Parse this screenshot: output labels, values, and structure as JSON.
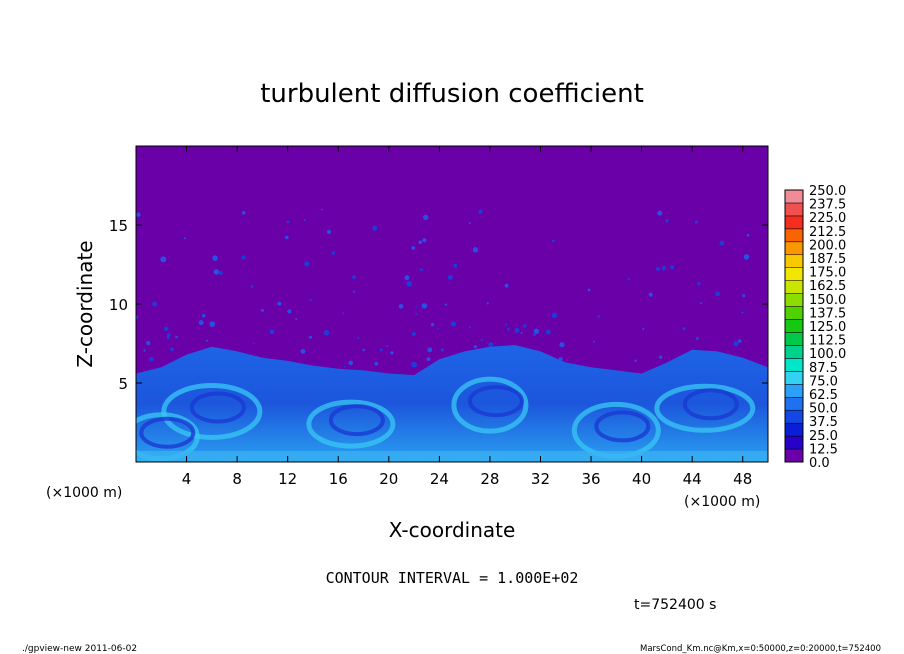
{
  "chart_data": {
    "type": "heatmap",
    "title": "turbulent diffusion coefficient",
    "xlabel": "X-coordinate",
    "ylabel": "Z-coordinate",
    "x_unit": "(×1000 m)",
    "y_unit": "(×1000 m)",
    "x_ticks": [
      4,
      8,
      12,
      16,
      20,
      24,
      28,
      32,
      36,
      40,
      44,
      48
    ],
    "y_ticks": [
      5,
      10,
      15
    ],
    "xlim": [
      0,
      50
    ],
    "ylim": [
      0,
      20
    ],
    "colorbar": {
      "levels": [
        "0.0",
        "12.5",
        "25.0",
        "37.5",
        "50.0",
        "62.5",
        "75.0",
        "87.5",
        "100.0",
        "112.5",
        "125.0",
        "137.5",
        "150.0",
        "162.5",
        "175.0",
        "187.5",
        "200.0",
        "212.5",
        "225.0",
        "237.5",
        "250.0"
      ],
      "colors": [
        "#6a00a8",
        "#2800c8",
        "#0a1ed8",
        "#1448e6",
        "#1e72f0",
        "#2aa0f8",
        "#32d2f0",
        "#00e6c8",
        "#00d28c",
        "#00c84a",
        "#14c814",
        "#50d200",
        "#8cdc00",
        "#c8e600",
        "#f0e600",
        "#f8c800",
        "#fa9600",
        "#fa6400",
        "#f52d1e",
        "#f05050",
        "#f08c96"
      ]
    },
    "boundary_layer_tops": [
      {
        "x": 0,
        "z": 5.6
      },
      {
        "x": 2,
        "z": 6.0
      },
      {
        "x": 4,
        "z": 6.8
      },
      {
        "x": 6,
        "z": 7.3
      },
      {
        "x": 8,
        "z": 7.0
      },
      {
        "x": 10,
        "z": 6.6
      },
      {
        "x": 12,
        "z": 6.4
      },
      {
        "x": 14,
        "z": 6.1
      },
      {
        "x": 16,
        "z": 5.9
      },
      {
        "x": 18,
        "z": 5.8
      },
      {
        "x": 20,
        "z": 5.6
      },
      {
        "x": 22,
        "z": 5.5
      },
      {
        "x": 24,
        "z": 6.5
      },
      {
        "x": 26,
        "z": 7.0
      },
      {
        "x": 28,
        "z": 7.3
      },
      {
        "x": 30,
        "z": 7.4
      },
      {
        "x": 32,
        "z": 7.0
      },
      {
        "x": 34,
        "z": 6.3
      },
      {
        "x": 36,
        "z": 6.0
      },
      {
        "x": 38,
        "z": 5.8
      },
      {
        "x": 40,
        "z": 5.6
      },
      {
        "x": 42,
        "z": 6.3
      },
      {
        "x": 44,
        "z": 7.1
      },
      {
        "x": 46,
        "z": 7.0
      },
      {
        "x": 48,
        "z": 6.6
      },
      {
        "x": 50,
        "z": 6.0
      }
    ]
  },
  "annotations": {
    "contour_interval": "CONTOUR INTERVAL = 1.000E+02",
    "time": "t=752400 s",
    "footer_left": "./gpview-new   2011-06-02",
    "footer_right": "MarsCond_Km.nc@Km,x=0:50000,z=0:20000,t=752400"
  }
}
